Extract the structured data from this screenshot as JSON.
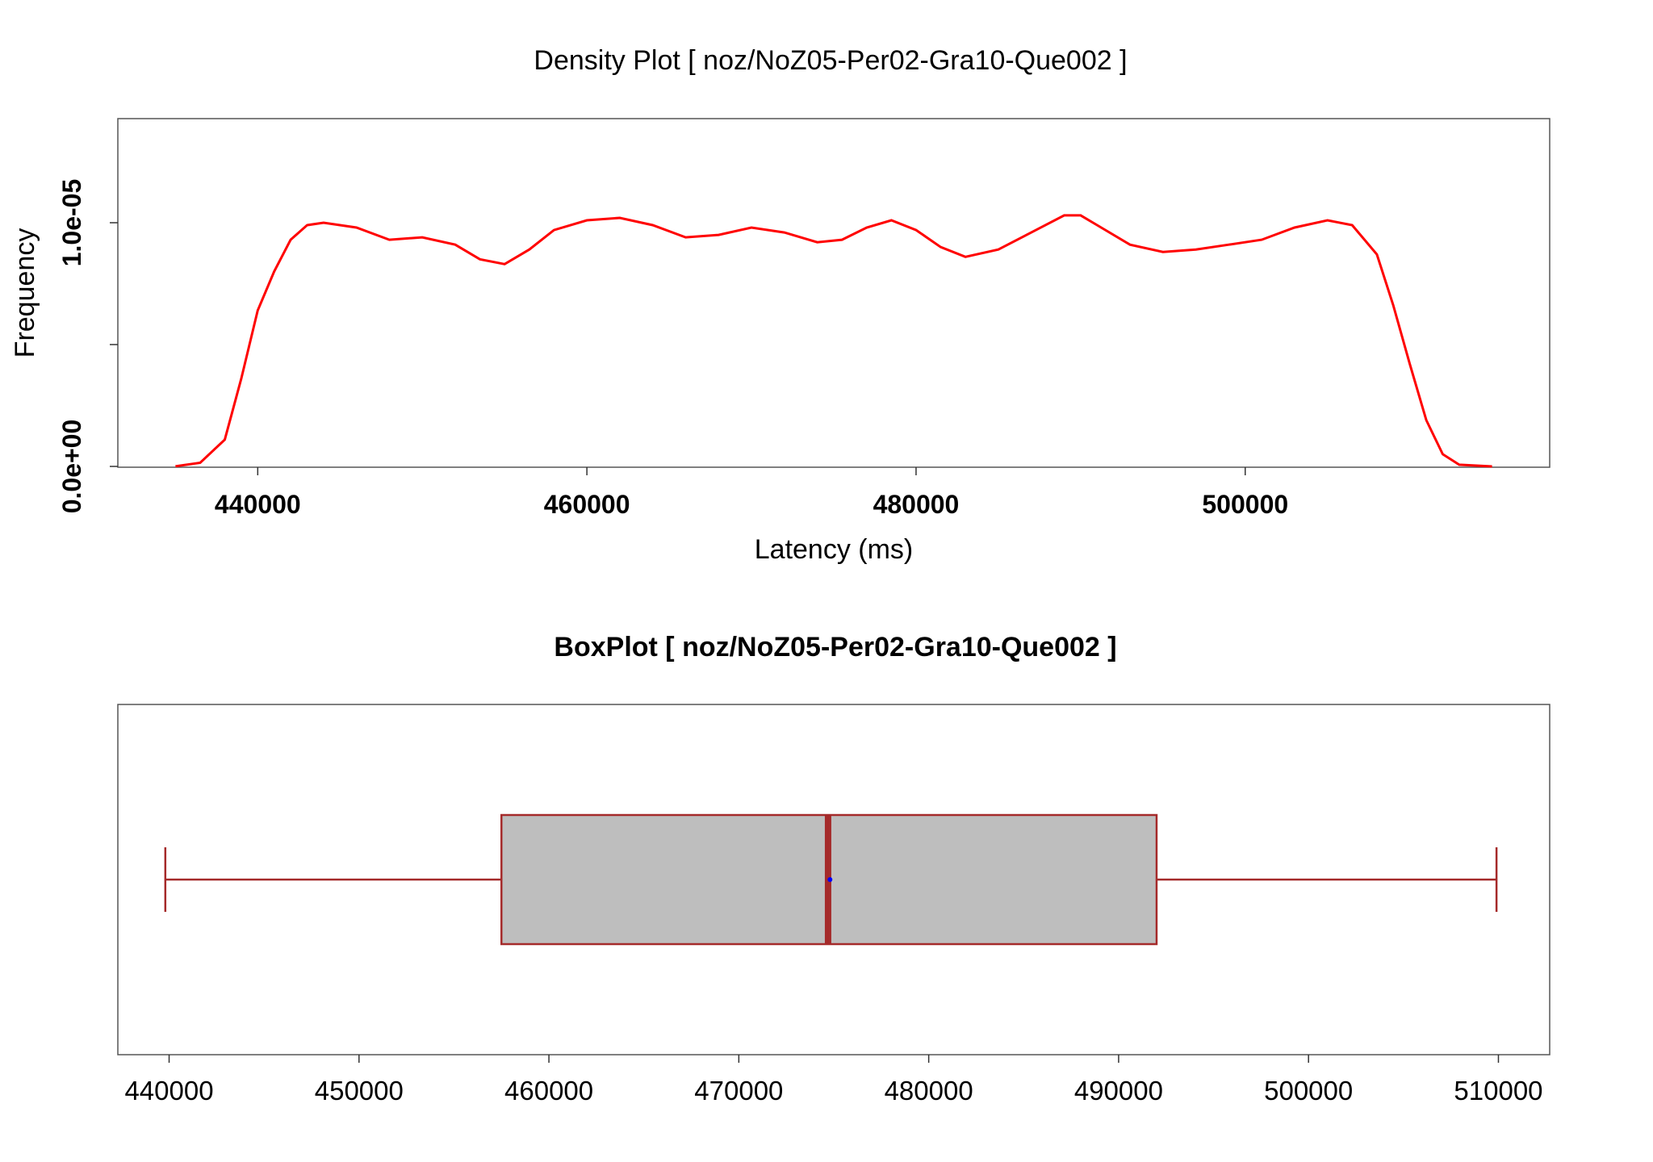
{
  "chart_data": [
    {
      "type": "line",
      "title": "Density Plot [ noz/NoZ05-Per02-Gra10-Que002 ]",
      "xlabel": "Latency (ms)",
      "ylabel": "Frequency",
      "xlim": [
        431500,
        518500
      ],
      "ylim": [
        -3.3e-08,
        1e-05
      ],
      "x_ticks": [
        440000,
        460000,
        480000,
        500000
      ],
      "x_tick_labels": [
        "440000",
        "460000",
        "480000",
        "500000"
      ],
      "y_ticks": [
        0,
        5e-06,
        1e-05
      ],
      "y_tick_labels": [
        "0.0e+00",
        "",
        "1.0e-05"
      ],
      "series": [
        {
          "color": "#ff0000",
          "x": [
            435000,
            436500,
            438000,
            439000,
            440000,
            441000,
            442000,
            443000,
            444000,
            446000,
            448000,
            450000,
            452000,
            453500,
            455000,
            456500,
            458000,
            460000,
            462000,
            464000,
            466000,
            468000,
            470000,
            472000,
            474000,
            475500,
            477000,
            478500,
            480000,
            481500,
            483000,
            485000,
            487000,
            489000,
            490000,
            491000,
            493000,
            495000,
            497000,
            499000,
            501000,
            503000,
            505000,
            506500,
            508000,
            509000,
            510000,
            511000,
            512000,
            513000,
            515000
          ],
          "y": [
            7e-09,
            1.5e-07,
            1.1e-06,
            3.6e-06,
            6.4e-06,
            8e-06,
            9.3e-06,
            9.9e-06,
            1e-05,
            9.8e-06,
            9.3e-06,
            9.4e-06,
            9.1e-06,
            8.5e-06,
            8.3e-06,
            8.9e-06,
            9.7e-06,
            1.01e-05,
            1.02e-05,
            9.9e-06,
            9.4e-06,
            9.5e-06,
            9.8e-06,
            9.6e-06,
            9.2e-06,
            9.3e-06,
            9.8e-06,
            1.01e-05,
            9.7e-06,
            9e-06,
            8.6e-06,
            8.9e-06,
            9.6e-06,
            1.03e-05,
            1.03e-05,
            9.9e-06,
            9.1e-06,
            8.8e-06,
            8.9e-06,
            9.1e-06,
            9.3e-06,
            9.8e-06,
            1.01e-05,
            9.9e-06,
            8.7e-06,
            6.6e-06,
            4.2e-06,
            1.9e-06,
            5e-07,
            7e-08,
            6e-10
          ]
        }
      ]
    },
    {
      "type": "box",
      "title": "BoxPlot [ noz/NoZ05-Per02-Gra10-Que002 ]",
      "orientation": "horizontal",
      "xlim": [
        437300,
        512700
      ],
      "x_ticks": [
        440000,
        450000,
        460000,
        470000,
        480000,
        490000,
        500000,
        510000
      ],
      "x_tick_labels": [
        "440000",
        "450000",
        "460000",
        "470000",
        "480000",
        "490000",
        "500000",
        "510000"
      ],
      "box": {
        "min": 439800,
        "q1": 457500,
        "median": 474700,
        "mean": 474800,
        "q3": 492000,
        "max": 509900
      },
      "box_fill": "#bebebe",
      "box_stroke": "#a52a2a",
      "mean_color": "#0000ff"
    }
  ]
}
